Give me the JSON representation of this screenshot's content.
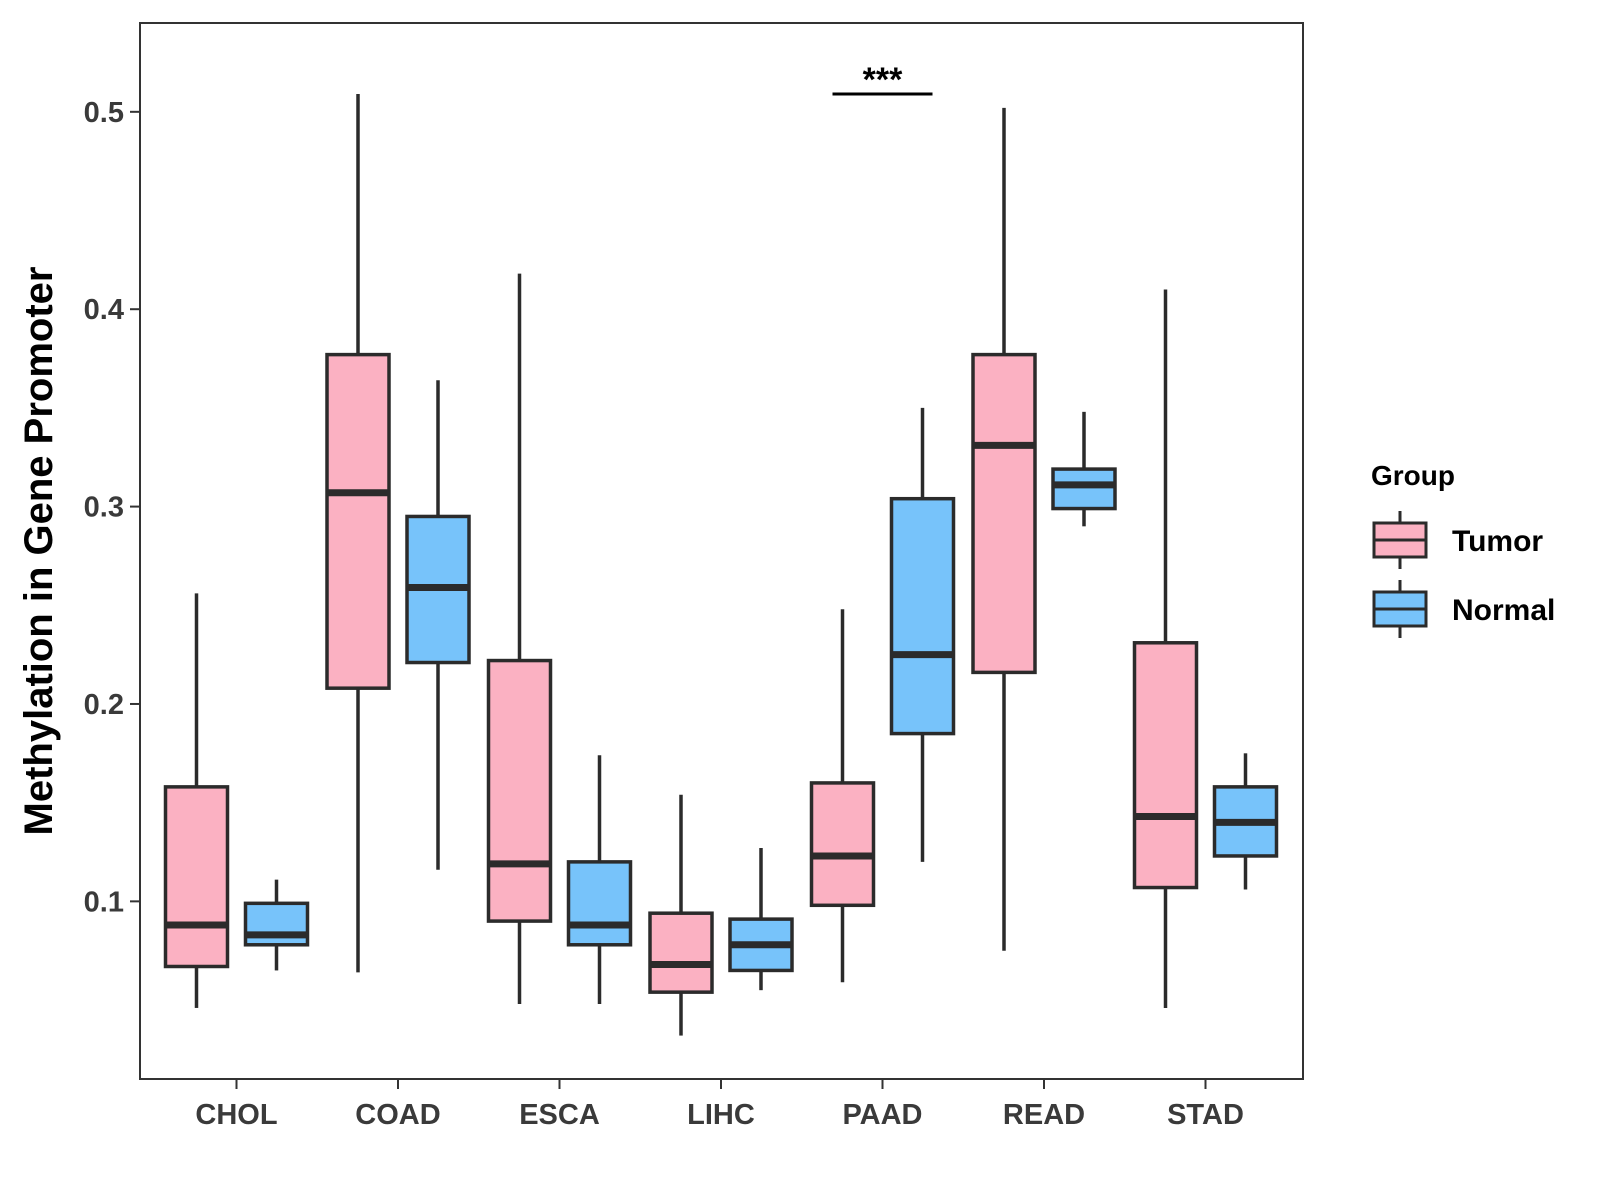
{
  "chart_data": {
    "type": "boxplot",
    "title": "",
    "xlabel": "",
    "ylabel": "Methylation in Gene Promoter",
    "ylim": [
      0.01,
      0.545
    ],
    "yticks": [
      0.1,
      0.2,
      0.3,
      0.4,
      0.5
    ],
    "ytick_labels": [
      "0.1",
      "0.2",
      "0.3",
      "0.4",
      "0.5"
    ],
    "categories": [
      "CHOL",
      "COAD",
      "ESCA",
      "LIHC",
      "PAAD",
      "READ",
      "STAD"
    ],
    "series": [
      {
        "name": "Tumor",
        "color": "#FBB1C2",
        "boxes": [
          {
            "min": 0.046,
            "q1": 0.067,
            "median": 0.088,
            "q3": 0.158,
            "max": 0.256
          },
          {
            "min": 0.064,
            "q1": 0.208,
            "median": 0.307,
            "q3": 0.377,
            "max": 0.509
          },
          {
            "min": 0.048,
            "q1": 0.09,
            "median": 0.119,
            "q3": 0.222,
            "max": 0.418
          },
          {
            "min": 0.032,
            "q1": 0.054,
            "median": 0.068,
            "q3": 0.094,
            "max": 0.154
          },
          {
            "min": 0.059,
            "q1": 0.098,
            "median": 0.123,
            "q3": 0.16,
            "max": 0.248
          },
          {
            "min": 0.075,
            "q1": 0.216,
            "median": 0.331,
            "q3": 0.377,
            "max": 0.502
          },
          {
            "min": 0.046,
            "q1": 0.107,
            "median": 0.143,
            "q3": 0.231,
            "max": 0.41
          }
        ]
      },
      {
        "name": "Normal",
        "color": "#77C3FA",
        "boxes": [
          {
            "min": 0.065,
            "q1": 0.078,
            "median": 0.083,
            "q3": 0.099,
            "max": 0.111
          },
          {
            "min": 0.116,
            "q1": 0.221,
            "median": 0.259,
            "q3": 0.295,
            "max": 0.364
          },
          {
            "min": 0.048,
            "q1": 0.078,
            "median": 0.088,
            "q3": 0.12,
            "max": 0.174
          },
          {
            "min": 0.055,
            "q1": 0.065,
            "median": 0.078,
            "q3": 0.091,
            "max": 0.127
          },
          {
            "min": 0.12,
            "q1": 0.185,
            "median": 0.225,
            "q3": 0.304,
            "max": 0.35
          },
          {
            "min": 0.29,
            "q1": 0.299,
            "median": 0.311,
            "q3": 0.319,
            "max": 0.348
          },
          {
            "min": 0.106,
            "q1": 0.123,
            "median": 0.14,
            "q3": 0.158,
            "max": 0.175
          }
        ]
      }
    ],
    "annotations": [
      {
        "category": "PAAD",
        "text": "***",
        "y": 0.509
      }
    ],
    "legend": {
      "title": "Group",
      "position": "right",
      "entries": [
        "Tumor",
        "Normal"
      ]
    },
    "grid": false
  }
}
